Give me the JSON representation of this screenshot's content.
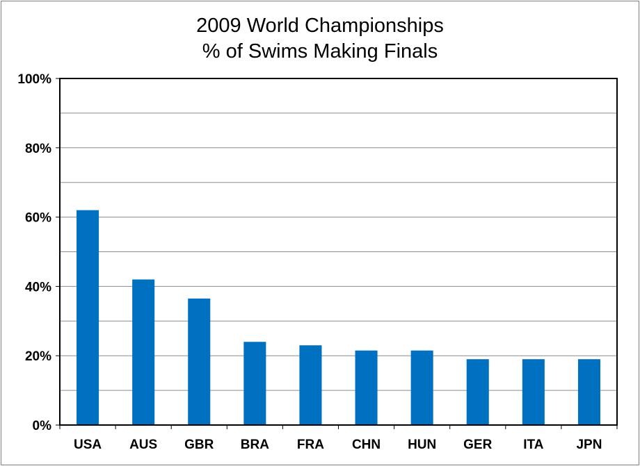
{
  "chart_data": {
    "type": "bar",
    "title": "2009 World Championships",
    "subtitle": "% of Swims Making Finals",
    "xlabel": "",
    "ylabel": "",
    "categories": [
      "USA",
      "AUS",
      "GBR",
      "BRA",
      "FRA",
      "CHN",
      "HUN",
      "GER",
      "ITA",
      "JPN"
    ],
    "values": [
      62,
      42,
      36.5,
      24,
      23,
      21.5,
      21.5,
      19,
      19,
      19
    ],
    "ylim": [
      0,
      100
    ],
    "y_tick_labels": [
      "0%",
      "20%",
      "40%",
      "60%",
      "80%",
      "100%"
    ],
    "y_ticks": [
      0,
      20,
      40,
      60,
      80,
      100
    ],
    "minor_gridlines": [
      10,
      30,
      50,
      70,
      90
    ],
    "grid": true,
    "legend": "none",
    "bar_color": "#0070C0",
    "grid_color": "#8c8c8c"
  }
}
